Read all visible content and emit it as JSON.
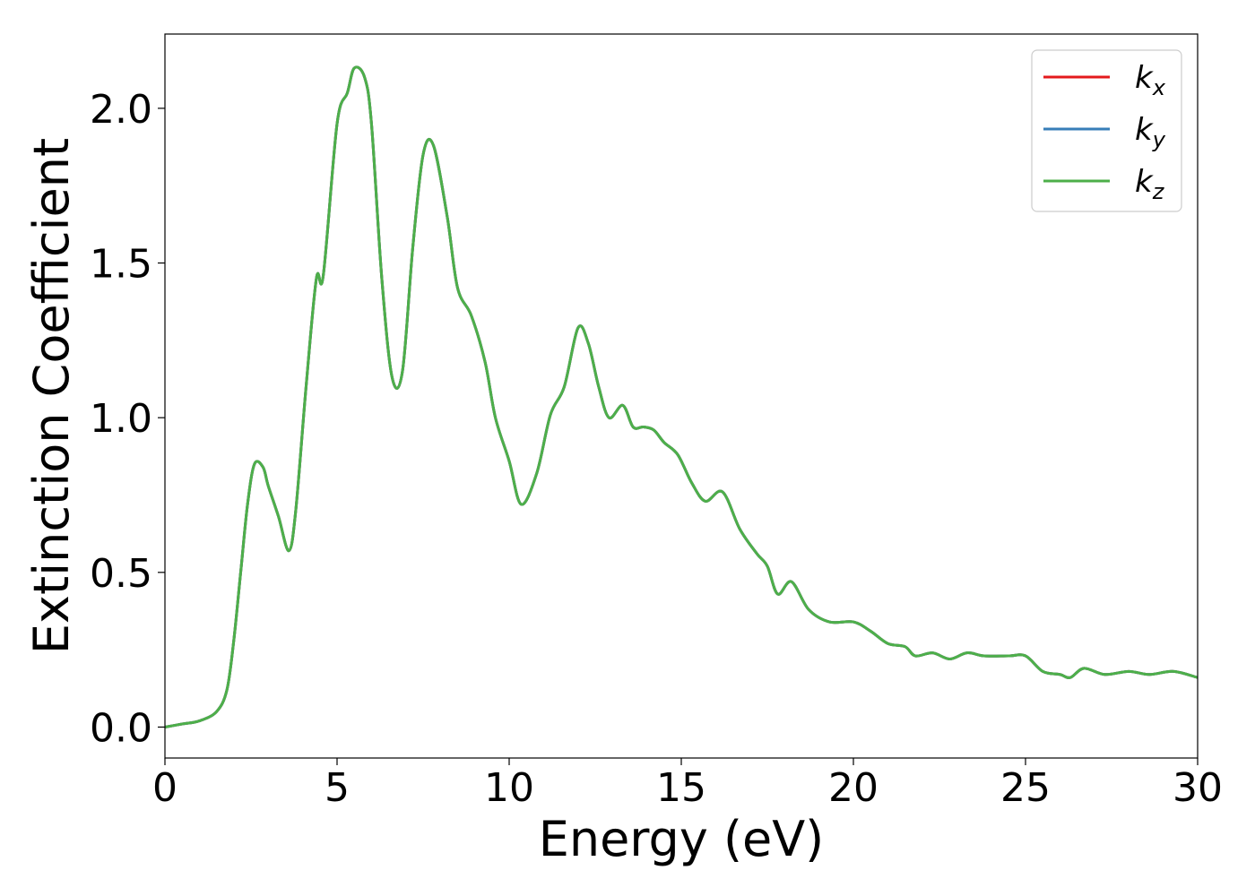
{
  "chart_data": {
    "type": "line",
    "title": "",
    "xlabel": "Energy (eV)",
    "ylabel": "Extinction Coefficient",
    "xlim": [
      0,
      30
    ],
    "ylim": [
      -0.1,
      2.24
    ],
    "xticks": [
      0,
      5,
      10,
      15,
      20,
      25,
      30
    ],
    "xtick_labels": [
      "0",
      "5",
      "10",
      "15",
      "20",
      "25",
      "30"
    ],
    "yticks": [
      0.0,
      0.5,
      1.0,
      1.5,
      2.0
    ],
    "ytick_labels": [
      "0.0",
      "0.5",
      "1.0",
      "1.5",
      "2.0"
    ],
    "grid": false,
    "legend_position": "top-right",
    "x": [
      0,
      0.5,
      1.0,
      1.5,
      1.8,
      2.0,
      2.2,
      2.4,
      2.6,
      2.85,
      3.0,
      3.3,
      3.6,
      3.8,
      4.1,
      4.4,
      4.6,
      5.0,
      5.3,
      5.5,
      5.8,
      6.0,
      6.3,
      6.6,
      6.9,
      7.2,
      7.5,
      7.8,
      8.2,
      8.5,
      8.9,
      9.3,
      9.6,
      10.0,
      10.35,
      10.8,
      11.2,
      11.6,
      12.0,
      12.3,
      12.6,
      12.9,
      13.3,
      13.6,
      13.9,
      14.2,
      14.5,
      14.9,
      15.3,
      15.7,
      16.2,
      16.7,
      17.2,
      17.5,
      17.8,
      18.2,
      18.7,
      19.3,
      20.0,
      20.5,
      21.0,
      21.5,
      21.8,
      22.3,
      22.8,
      23.3,
      23.8,
      24.5,
      25.0,
      25.5,
      26.0,
      26.3,
      26.7,
      27.3,
      28.0,
      28.6,
      29.3,
      30.0
    ],
    "series": [
      {
        "name": "k_x",
        "color": "#e41a1c",
        "values": [
          0.0,
          0.01,
          0.02,
          0.05,
          0.12,
          0.28,
          0.5,
          0.72,
          0.85,
          0.84,
          0.78,
          0.68,
          0.57,
          0.7,
          1.1,
          1.45,
          1.46,
          1.95,
          2.05,
          2.13,
          2.1,
          1.95,
          1.45,
          1.13,
          1.15,
          1.55,
          1.85,
          1.88,
          1.65,
          1.42,
          1.33,
          1.18,
          1.0,
          0.86,
          0.72,
          0.82,
          1.01,
          1.1,
          1.29,
          1.24,
          1.1,
          1.0,
          1.04,
          0.97,
          0.97,
          0.96,
          0.92,
          0.88,
          0.79,
          0.73,
          0.76,
          0.64,
          0.56,
          0.52,
          0.43,
          0.47,
          0.38,
          0.34,
          0.34,
          0.31,
          0.27,
          0.26,
          0.23,
          0.24,
          0.22,
          0.24,
          0.23,
          0.23,
          0.23,
          0.18,
          0.17,
          0.16,
          0.19,
          0.17,
          0.18,
          0.17,
          0.18,
          0.16
        ]
      },
      {
        "name": "k_y",
        "color": "#377eb8",
        "values": [
          0.0,
          0.01,
          0.02,
          0.05,
          0.12,
          0.28,
          0.5,
          0.72,
          0.85,
          0.84,
          0.78,
          0.68,
          0.57,
          0.7,
          1.1,
          1.45,
          1.46,
          1.95,
          2.05,
          2.13,
          2.1,
          1.95,
          1.45,
          1.13,
          1.15,
          1.55,
          1.85,
          1.88,
          1.65,
          1.42,
          1.33,
          1.18,
          1.0,
          0.86,
          0.72,
          0.82,
          1.01,
          1.1,
          1.29,
          1.24,
          1.1,
          1.0,
          1.04,
          0.97,
          0.97,
          0.96,
          0.92,
          0.88,
          0.79,
          0.73,
          0.76,
          0.64,
          0.56,
          0.52,
          0.43,
          0.47,
          0.38,
          0.34,
          0.34,
          0.31,
          0.27,
          0.26,
          0.23,
          0.24,
          0.22,
          0.24,
          0.23,
          0.23,
          0.23,
          0.18,
          0.17,
          0.16,
          0.19,
          0.17,
          0.18,
          0.17,
          0.18,
          0.16
        ]
      },
      {
        "name": "k_z",
        "color": "#4daf4a",
        "values": [
          0.0,
          0.01,
          0.02,
          0.05,
          0.12,
          0.28,
          0.5,
          0.72,
          0.85,
          0.84,
          0.78,
          0.68,
          0.57,
          0.7,
          1.1,
          1.45,
          1.46,
          1.95,
          2.05,
          2.13,
          2.1,
          1.95,
          1.45,
          1.13,
          1.15,
          1.55,
          1.85,
          1.88,
          1.65,
          1.42,
          1.33,
          1.18,
          1.0,
          0.86,
          0.72,
          0.82,
          1.01,
          1.1,
          1.29,
          1.24,
          1.1,
          1.0,
          1.04,
          0.97,
          0.97,
          0.96,
          0.92,
          0.88,
          0.79,
          0.73,
          0.76,
          0.64,
          0.56,
          0.52,
          0.43,
          0.47,
          0.38,
          0.34,
          0.34,
          0.31,
          0.27,
          0.26,
          0.23,
          0.24,
          0.22,
          0.24,
          0.23,
          0.23,
          0.23,
          0.18,
          0.17,
          0.16,
          0.19,
          0.17,
          0.18,
          0.17,
          0.18,
          0.16
        ]
      }
    ],
    "legend": [
      {
        "base": "k",
        "sub": "x",
        "color": "#e41a1c"
      },
      {
        "base": "k",
        "sub": "y",
        "color": "#377eb8"
      },
      {
        "base": "k",
        "sub": "z",
        "color": "#4daf4a"
      }
    ]
  }
}
